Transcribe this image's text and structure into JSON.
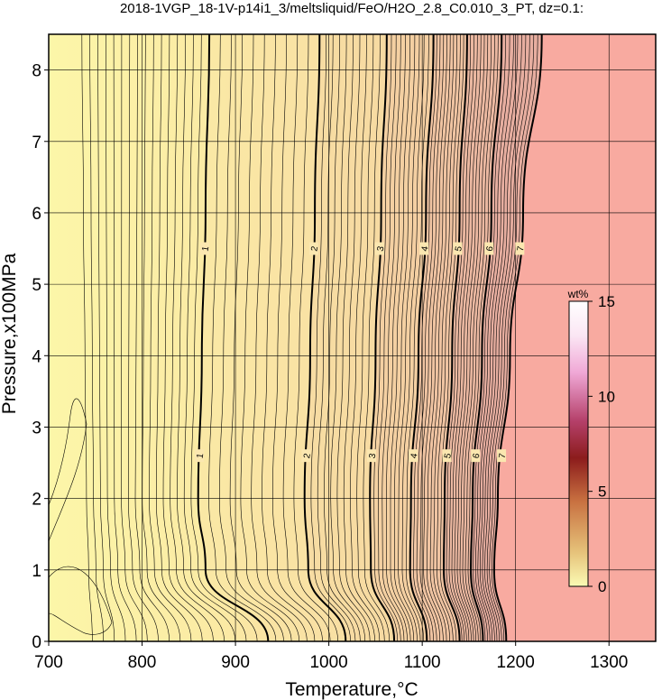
{
  "chart_data": {
    "type": "contour",
    "title": "2018-1VGP_18-1V-p14i1_3/meltsliquid/FeO/H2O_2.8_C0.010_3_PT, dz=0.1:",
    "xlabel": "Temperature,°C",
    "ylabel": "Pressure,x100MPa",
    "xlim": [
      700,
      1350
    ],
    "ylim": [
      0,
      8.5
    ],
    "xticks": [
      700,
      800,
      900,
      1000,
      1100,
      1200,
      1300
    ],
    "yticks": [
      0,
      1,
      2,
      3,
      4,
      5,
      6,
      7,
      8
    ],
    "grid": true,
    "contour_interval": 0.1,
    "labeled_contours": [
      {
        "label": "1",
        "temps_at_pressure": {
          "p0": 935,
          "p1": 868,
          "p2": 860,
          "p4": 864,
          "p6": 868,
          "p8.5": 872
        }
      },
      {
        "label": "2",
        "temps_at_pressure": {
          "p0": 1018,
          "p1": 978,
          "p2": 974,
          "p4": 980,
          "p6": 985,
          "p8.5": 990
        }
      },
      {
        "label": "3",
        "temps_at_pressure": {
          "p0": 1070,
          "p1": 1045,
          "p2": 1044,
          "p4": 1050,
          "p6": 1056,
          "p8.5": 1062
        }
      },
      {
        "label": "4",
        "temps_at_pressure": {
          "p0": 1105,
          "p1": 1087,
          "p2": 1088,
          "p4": 1096,
          "p6": 1104,
          "p8.5": 1112
        }
      },
      {
        "label": "5",
        "temps_at_pressure": {
          "p0": 1140,
          "p1": 1123,
          "p2": 1124,
          "p4": 1132,
          "p6": 1140,
          "p8.5": 1148
        }
      },
      {
        "label": "6",
        "temps_at_pressure": {
          "p0": 1165,
          "p1": 1152,
          "p2": 1154,
          "p4": 1164,
          "p6": 1174,
          "p8.5": 1185
        }
      },
      {
        "label": "7",
        "temps_at_pressure": {
          "p0": 1190,
          "p1": 1177,
          "p2": 1181,
          "p4": 1194,
          "p6": 1208,
          "p8.5": 1228
        }
      }
    ],
    "colorbar": {
      "label": "wt%",
      "min": 0,
      "max": 15,
      "ticks": [
        0,
        5,
        10,
        15
      ]
    },
    "colors": {
      "low": "#fcf6a8",
      "high": "#f8aaa0",
      "contour": "#000000",
      "grid": "#000000"
    }
  }
}
